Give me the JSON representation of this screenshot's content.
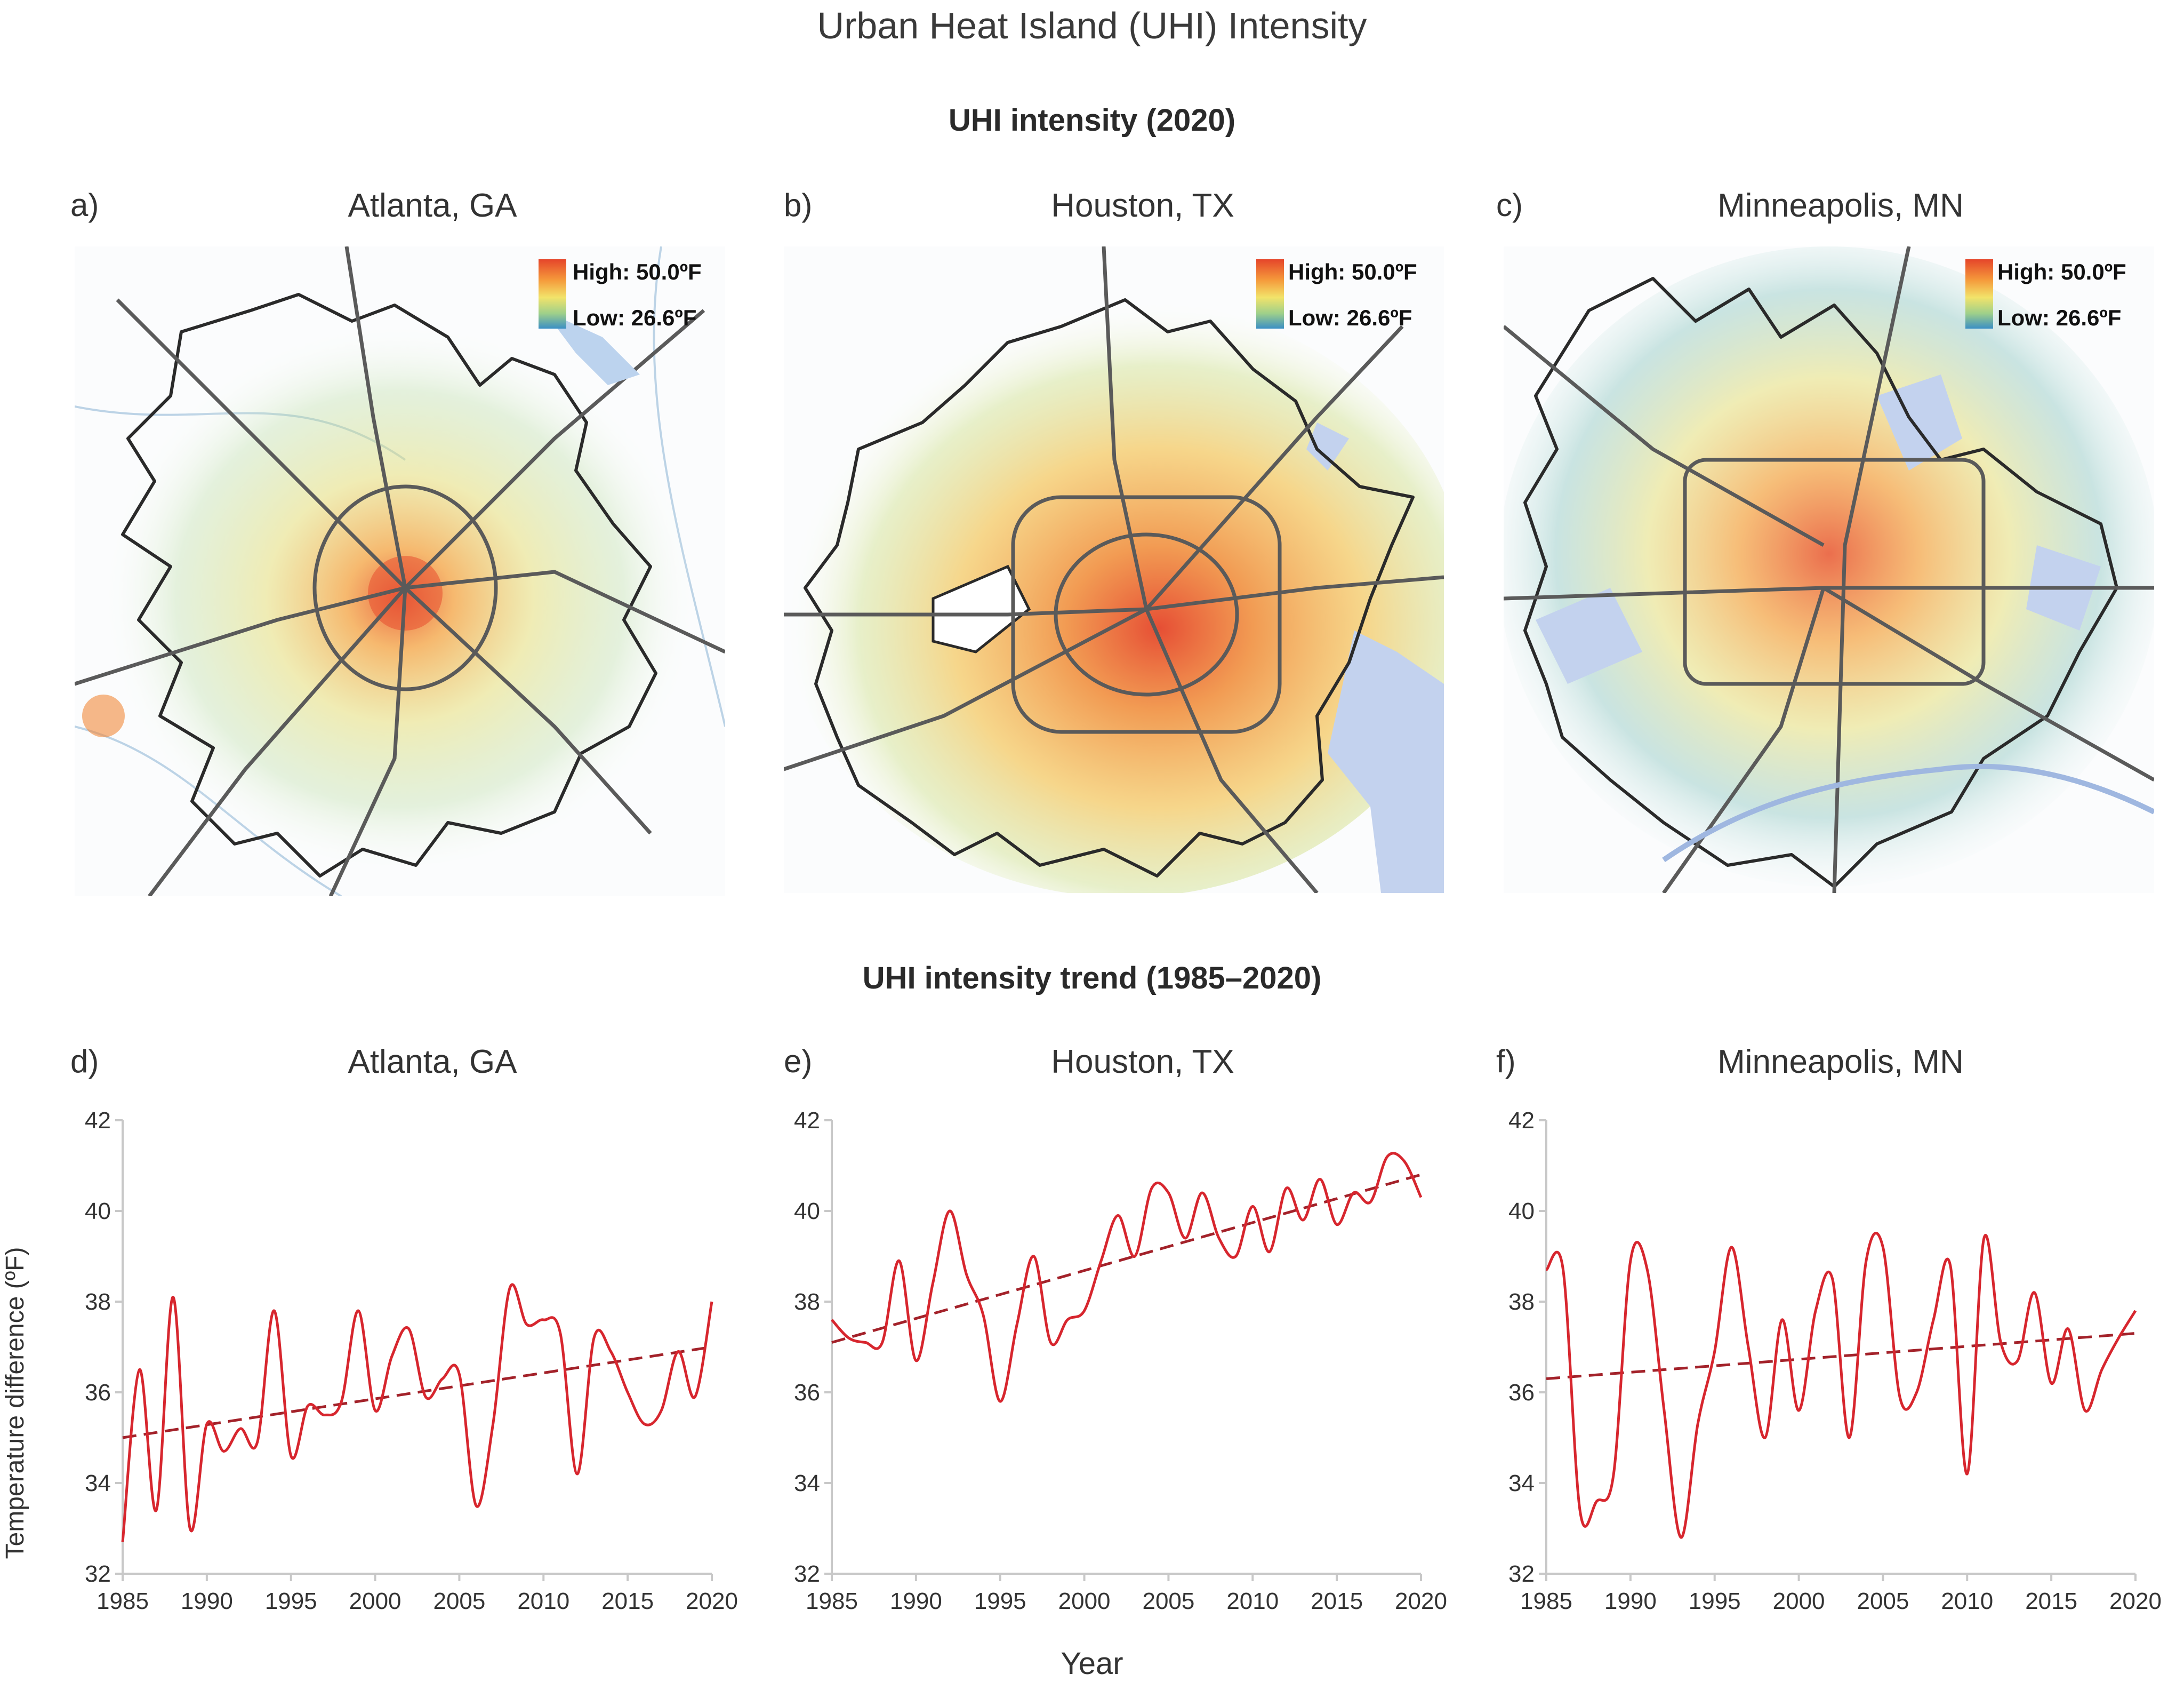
{
  "figure": {
    "title": "Urban Heat Island (UHI) Intensity",
    "maps_section_title": "UHI intensity (2020)",
    "trends_section_title": "UHI intensity trend (1985–2020)",
    "y_axis_label": "Temperature difference (ºF)",
    "x_axis_label": "Year"
  },
  "maps": [
    {
      "letter": "a)",
      "city": "Atlanta, GA",
      "legend_high": "High: 50.0ºF",
      "legend_low": "Low: 26.6ºF"
    },
    {
      "letter": "b)",
      "city": "Houston, TX",
      "legend_high": "High: 50.0ºF",
      "legend_low": "Low: 26.6ºF"
    },
    {
      "letter": "c)",
      "city": "Minneapolis, MN",
      "legend_high": "High: 50.0ºF",
      "legend_low": "Low: 26.6ºF"
    }
  ],
  "colors": {
    "series": "#d7262e",
    "trend": "#a3222a",
    "axis": "#c8c8c8"
  },
  "chart_data": [
    {
      "type": "line",
      "letter": "d)",
      "title": "Atlanta, GA",
      "ylim": [
        32,
        42
      ],
      "xlim": [
        1985,
        2020
      ],
      "yticks": [
        32,
        34,
        36,
        38,
        40,
        42
      ],
      "xticks": [
        1985,
        1990,
        1995,
        2000,
        2005,
        2010,
        2015,
        2020
      ],
      "x": [
        1985,
        1986,
        1987,
        1988,
        1989,
        1990,
        1991,
        1992,
        1993,
        1994,
        1995,
        1996,
        1997,
        1998,
        1999,
        2000,
        2001,
        2002,
        2003,
        2004,
        2005,
        2006,
        2007,
        2008,
        2009,
        2010,
        2011,
        2012,
        2013,
        2014,
        2015,
        2016,
        2017,
        2018,
        2019,
        2020
      ],
      "values": [
        32.7,
        36.5,
        33.4,
        38.1,
        33.0,
        35.3,
        34.7,
        35.2,
        34.9,
        37.8,
        34.6,
        35.7,
        35.5,
        35.8,
        37.8,
        35.6,
        36.8,
        37.4,
        35.9,
        36.3,
        36.4,
        33.5,
        35.3,
        38.3,
        37.5,
        37.6,
        37.3,
        34.2,
        37.2,
        36.9,
        36.0,
        35.3,
        35.6,
        36.9,
        35.9,
        38.0
      ],
      "trend": [
        35.0,
        37.0
      ]
    },
    {
      "type": "line",
      "letter": "e)",
      "title": "Houston, TX",
      "ylim": [
        32,
        42
      ],
      "xlim": [
        1985,
        2020
      ],
      "yticks": [
        32,
        34,
        36,
        38,
        40,
        42
      ],
      "xticks": [
        1985,
        1990,
        1995,
        2000,
        2005,
        2010,
        2015,
        2020
      ],
      "x": [
        1985,
        1986,
        1987,
        1988,
        1989,
        1990,
        1991,
        1992,
        1993,
        1994,
        1995,
        1996,
        1997,
        1998,
        1999,
        2000,
        2001,
        2002,
        2003,
        2004,
        2005,
        2006,
        2007,
        2008,
        2009,
        2010,
        2011,
        2012,
        2013,
        2014,
        2015,
        2016,
        2017,
        2018,
        2019,
        2020
      ],
      "values": [
        37.6,
        37.2,
        37.1,
        37.1,
        38.9,
        36.7,
        38.4,
        40.0,
        38.6,
        37.7,
        35.8,
        37.5,
        39.0,
        37.1,
        37.6,
        37.8,
        38.9,
        39.9,
        39.0,
        40.5,
        40.4,
        39.4,
        40.4,
        39.4,
        39.0,
        40.1,
        39.1,
        40.5,
        39.8,
        40.7,
        39.7,
        40.4,
        40.2,
        41.2,
        41.1,
        40.3
      ],
      "trend": [
        37.1,
        40.8
      ]
    },
    {
      "type": "line",
      "letter": "f)",
      "title": "Minneapolis, MN",
      "ylim": [
        32,
        42
      ],
      "xlim": [
        1985,
        2020
      ],
      "yticks": [
        32,
        34,
        36,
        38,
        40,
        42
      ],
      "xticks": [
        1985,
        1990,
        1995,
        2000,
        2005,
        2010,
        2015,
        2020
      ],
      "x": [
        1985,
        1986,
        1987,
        1988,
        1989,
        1990,
        1991,
        1992,
        1993,
        1994,
        1995,
        1996,
        1997,
        1998,
        1999,
        2000,
        2001,
        2002,
        2003,
        2004,
        2005,
        2006,
        2007,
        2008,
        2009,
        2010,
        2011,
        2012,
        2013,
        2014,
        2015,
        2016,
        2017,
        2018,
        2019,
        2020
      ],
      "values": [
        38.7,
        38.7,
        33.4,
        33.6,
        34.2,
        38.9,
        38.7,
        35.6,
        32.8,
        35.3,
        36.9,
        39.2,
        37.0,
        35.0,
        37.6,
        35.6,
        37.8,
        38.5,
        35.0,
        38.9,
        39.2,
        35.9,
        36.0,
        37.6,
        38.8,
        34.2,
        39.4,
        37.1,
        36.7,
        38.2,
        36.2,
        37.4,
        35.6,
        36.5,
        37.2,
        37.8
      ],
      "trend": [
        36.3,
        37.3
      ]
    }
  ]
}
